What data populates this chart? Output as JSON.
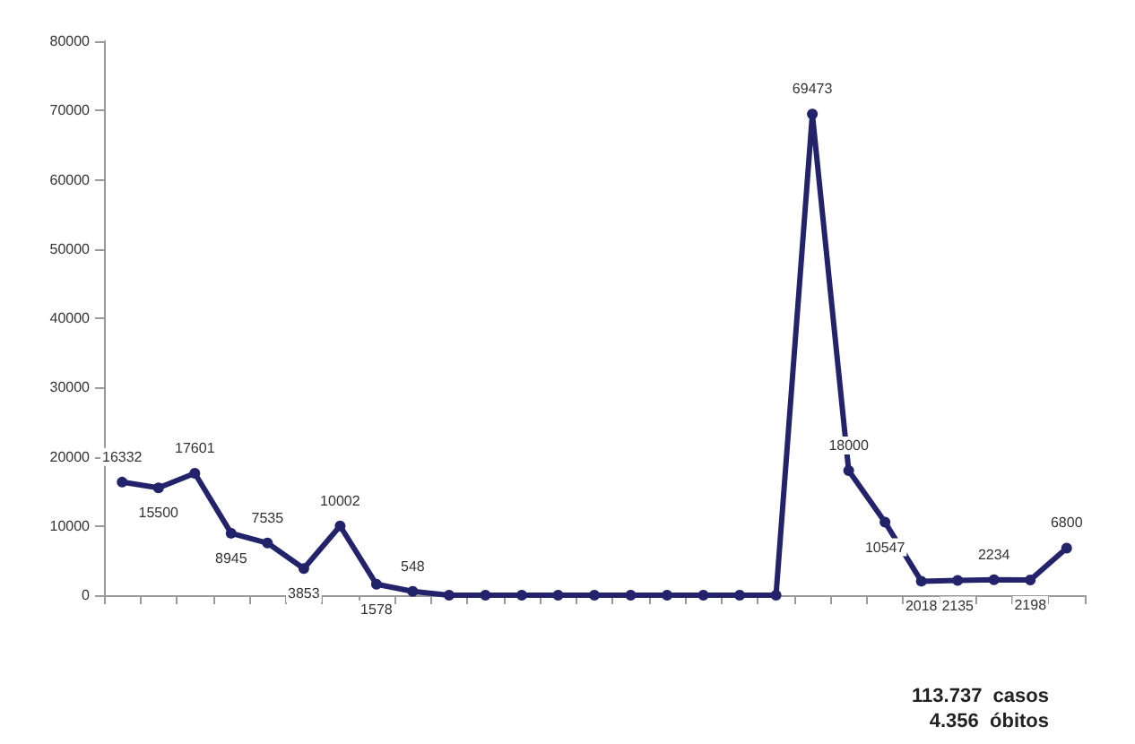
{
  "chart_data": {
    "type": "line",
    "categories": [
      null,
      null,
      null,
      null,
      null,
      null,
      null,
      null,
      null,
      null,
      null,
      null,
      null,
      null,
      null,
      null,
      null,
      null,
      null,
      null,
      null,
      null,
      null,
      null,
      null,
      null,
      null
    ],
    "series": [
      {
        "color": "#23236b",
        "values": [
          16332,
          15500,
          17601,
          8945,
          7535,
          3853,
          10002,
          1578,
          548,
          0,
          0,
          0,
          0,
          0,
          0,
          0,
          0,
          0,
          0,
          69473,
          18000,
          10547,
          2018,
          2135,
          2234,
          2198,
          6800
        ],
        "value_labels": [
          "16332",
          "15500",
          "17601",
          "8945",
          "7535",
          "3853",
          "10002",
          "1578",
          "548",
          null,
          null,
          null,
          null,
          null,
          null,
          null,
          null,
          null,
          null,
          "69473",
          "18000",
          "10547",
          "2018",
          "2135",
          "2234",
          "2198",
          "6800"
        ]
      }
    ],
    "ylim": [
      0,
      80000
    ],
    "yticks": [
      0,
      10000,
      20000,
      30000,
      40000,
      50000,
      60000,
      70000,
      80000
    ],
    "grid": false,
    "marker": "circle",
    "line_style": "solid",
    "annotations": [
      "113.737  casos",
      "4.356  óbitos"
    ]
  }
}
